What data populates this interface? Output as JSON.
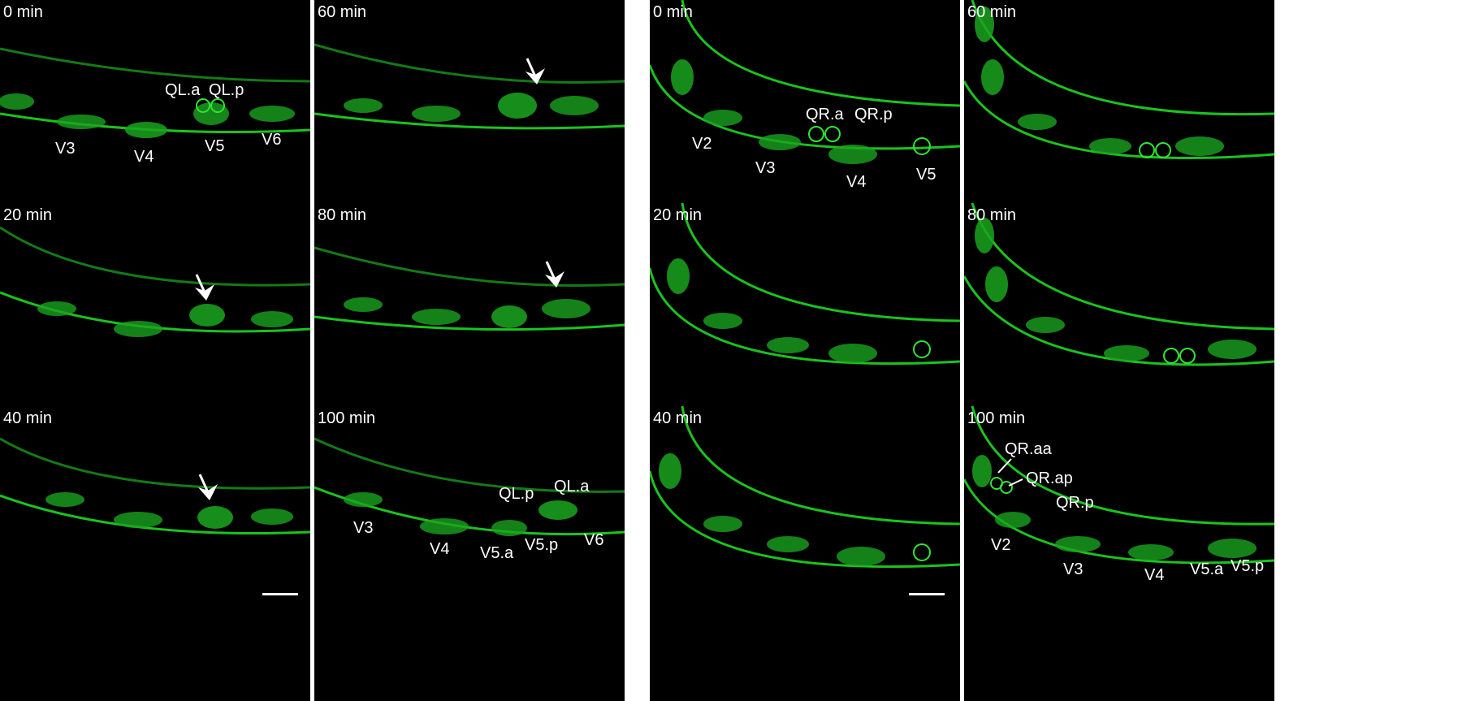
{
  "columns": [
    {
      "panels": [
        {
          "time": "0 min",
          "labels": [
            "QL.a",
            "QL.p",
            "V3",
            "V4",
            "V5",
            "V6"
          ]
        },
        {
          "time": "20 min",
          "labels": []
        },
        {
          "time": "40 min",
          "labels": []
        }
      ]
    },
    {
      "panels": [
        {
          "time": "60 min",
          "labels": []
        },
        {
          "time": "80 min",
          "labels": []
        },
        {
          "time": "100 min",
          "labels": [
            "QL.p",
            "QL.a",
            "V3",
            "V4",
            "V5.a",
            "V5.p",
            "V6"
          ]
        }
      ]
    },
    {
      "panels": [
        {
          "time": "0 min",
          "labels": [
            "QR.a",
            "QR.p",
            "V2",
            "V3",
            "V4",
            "V5"
          ]
        },
        {
          "time": "20 min",
          "labels": []
        },
        {
          "time": "40 min",
          "labels": []
        }
      ]
    },
    {
      "panels": [
        {
          "time": "60 min",
          "labels": []
        },
        {
          "time": "80 min",
          "labels": []
        },
        {
          "time": "100 min",
          "labels": [
            "QR.aa",
            "QR.ap",
            "QR.p",
            "V2",
            "V3",
            "V4",
            "V5.a",
            "V5.p"
          ]
        }
      ]
    }
  ],
  "colors": {
    "fluorescence": "#19c41e",
    "background": "#000000",
    "annotation": "#ffffff"
  }
}
